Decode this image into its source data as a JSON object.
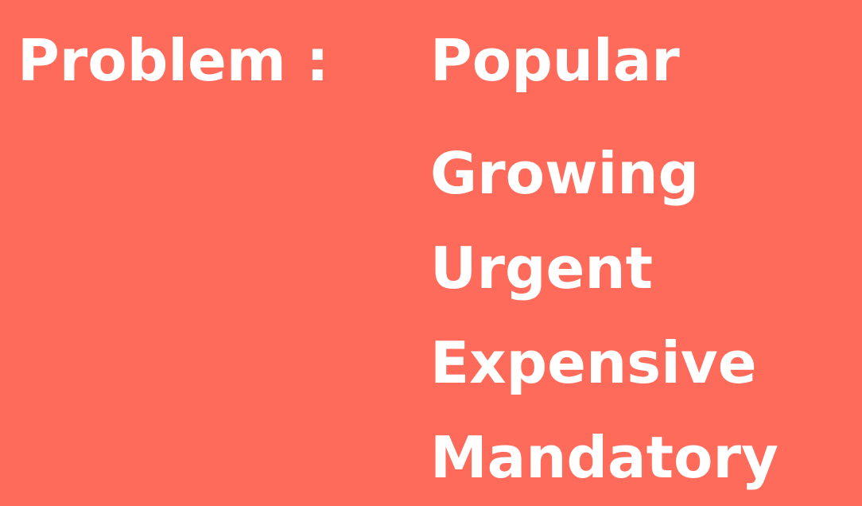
{
  "slide": {
    "label": "Problem :",
    "items": [
      "Popular",
      "Growing",
      "Urgent",
      "Expensive",
      "Mandatory"
    ]
  },
  "colors": {
    "background": "#FF6B5B",
    "text": "#FFFFFF"
  }
}
